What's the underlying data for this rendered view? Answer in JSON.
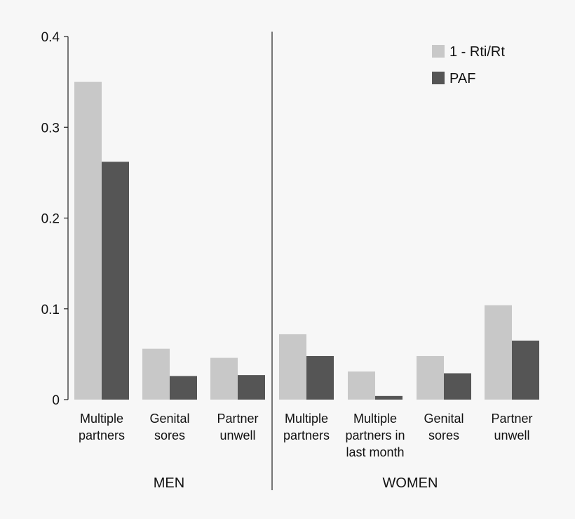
{
  "chart_data": {
    "type": "bar",
    "title": "",
    "xlabel": "",
    "ylabel": "",
    "ylim": [
      0,
      0.4
    ],
    "yticks": [
      "0",
      "0.1",
      "0.2",
      "0.3",
      "0.4"
    ],
    "grid": false,
    "legend_position": "top-right",
    "groups": [
      "MEN",
      "WOMEN"
    ],
    "categories": [
      {
        "group": "MEN",
        "label_lines": [
          "Multiple",
          "partners"
        ]
      },
      {
        "group": "MEN",
        "label_lines": [
          "Genital",
          "sores"
        ]
      },
      {
        "group": "MEN",
        "label_lines": [
          "Partner",
          "unwell"
        ]
      },
      {
        "group": "WOMEN",
        "label_lines": [
          "Multiple",
          "partners"
        ]
      },
      {
        "group": "WOMEN",
        "label_lines": [
          "Multiple",
          "partners in",
          "last month"
        ]
      },
      {
        "group": "WOMEN",
        "label_lines": [
          "Genital",
          "sores"
        ]
      },
      {
        "group": "WOMEN",
        "label_lines": [
          "Partner",
          "unwell"
        ]
      }
    ],
    "series": [
      {
        "name": "1 - Rti/Rt",
        "color": "#c8c8c8",
        "values": [
          0.35,
          0.056,
          0.046,
          0.072,
          0.031,
          0.048,
          0.104
        ]
      },
      {
        "name": "PAF",
        "color": "#555555",
        "values": [
          0.262,
          0.026,
          0.027,
          0.048,
          0.004,
          0.029,
          0.065
        ]
      }
    ]
  }
}
